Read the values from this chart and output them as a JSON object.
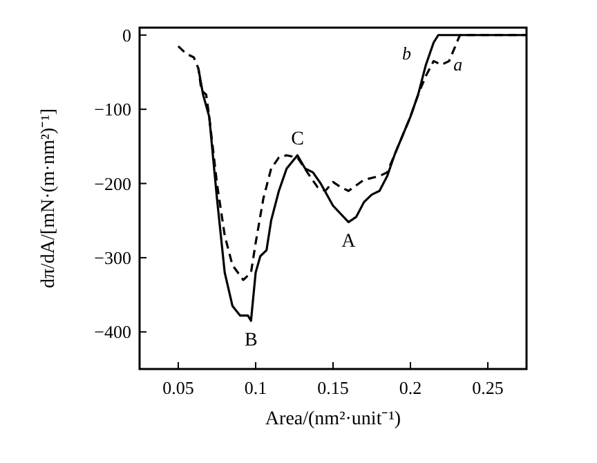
{
  "chart_data": {
    "type": "line",
    "xlabel": "Area/(nm²·unit⁻¹)",
    "ylabel": "dπ/dA/[mN·(m·nm²)⁻¹]",
    "xlim": [
      0.025,
      0.275
    ],
    "ylim": [
      -450,
      10
    ],
    "xticks": [
      0.05,
      0.1,
      0.15,
      0.2,
      0.25
    ],
    "yticks": [
      0,
      -100,
      -200,
      -300,
      -400
    ],
    "grid": false,
    "marker": "none",
    "series": [
      {
        "name": "a",
        "color": "#000000",
        "line_style": "dashed",
        "x": [
          0.05,
          0.055,
          0.06,
          0.063,
          0.065,
          0.068,
          0.07,
          0.075,
          0.08,
          0.085,
          0.092,
          0.097,
          0.1,
          0.105,
          0.11,
          0.115,
          0.12,
          0.127,
          0.135,
          0.14,
          0.145,
          0.15,
          0.155,
          0.16,
          0.17,
          0.18,
          0.185,
          0.19,
          0.195,
          0.2,
          0.205,
          0.21,
          0.215,
          0.22,
          0.225,
          0.232,
          0.275
        ],
        "values": [
          -15,
          -25,
          -30,
          -45,
          -75,
          -80,
          -110,
          -200,
          -270,
          -310,
          -330,
          -320,
          -280,
          -220,
          -180,
          -165,
          -162,
          -165,
          -190,
          -205,
          -210,
          -198,
          -205,
          -210,
          -195,
          -190,
          -185,
          -160,
          -135,
          -110,
          -80,
          -55,
          -35,
          -40,
          -35,
          0,
          0
        ]
      },
      {
        "name": "b",
        "color": "#000000",
        "line_style": "solid",
        "x": [
          0.063,
          0.066,
          0.07,
          0.075,
          0.08,
          0.085,
          0.09,
          0.095,
          0.097,
          0.1,
          0.103,
          0.107,
          0.11,
          0.115,
          0.12,
          0.127,
          0.132,
          0.137,
          0.142,
          0.15,
          0.16,
          0.165,
          0.17,
          0.175,
          0.18,
          0.185,
          0.19,
          0.2,
          0.205,
          0.21,
          0.215,
          0.218,
          0.275
        ],
        "values": [
          -45,
          -80,
          -110,
          -220,
          -320,
          -365,
          -378,
          -378,
          -385,
          -320,
          -298,
          -290,
          -250,
          -210,
          -180,
          -162,
          -180,
          -185,
          -200,
          -230,
          -252,
          -245,
          -225,
          -215,
          -210,
          -190,
          -160,
          -110,
          -80,
          -40,
          -10,
          0,
          0
        ]
      }
    ],
    "annotations": [
      {
        "text": "A",
        "x": 0.16,
        "y": -252
      },
      {
        "text": "B",
        "x": 0.097,
        "y": -385
      },
      {
        "text": "C",
        "x": 0.127,
        "y": -162
      }
    ]
  }
}
